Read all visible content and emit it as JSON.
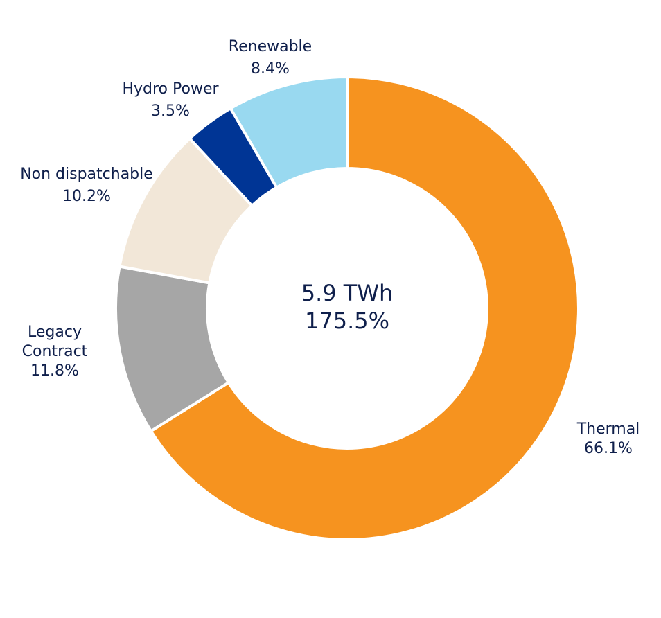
{
  "chart_data": {
    "type": "pie",
    "center_label": {
      "line1": "5.9 TWh",
      "line2": "175.5%"
    },
    "slices": [
      {
        "name": "Thermal",
        "value": 66.1,
        "value_label": "66.1%",
        "color": "#f6931f",
        "label_lines": [
          "Thermal"
        ]
      },
      {
        "name": "Legacy Contract",
        "value": 11.8,
        "value_label": "11.8%",
        "color": "#a6a6a6",
        "label_lines": [
          "Legacy",
          "Contract"
        ]
      },
      {
        "name": "Non dispatchable",
        "value": 10.2,
        "value_label": "10.2%",
        "color": "#f2e7d8",
        "label_lines": [
          "Non dispatchable"
        ]
      },
      {
        "name": "Hydro Power",
        "value": 3.5,
        "value_label": "3.5%",
        "color": "#003595",
        "label_lines": [
          "Hydro Power"
        ]
      },
      {
        "name": "Renewable",
        "value": 8.4,
        "value_label": "8.4%",
        "color": "#99d9f0",
        "label_lines": [
          "Renewable"
        ]
      }
    ]
  }
}
